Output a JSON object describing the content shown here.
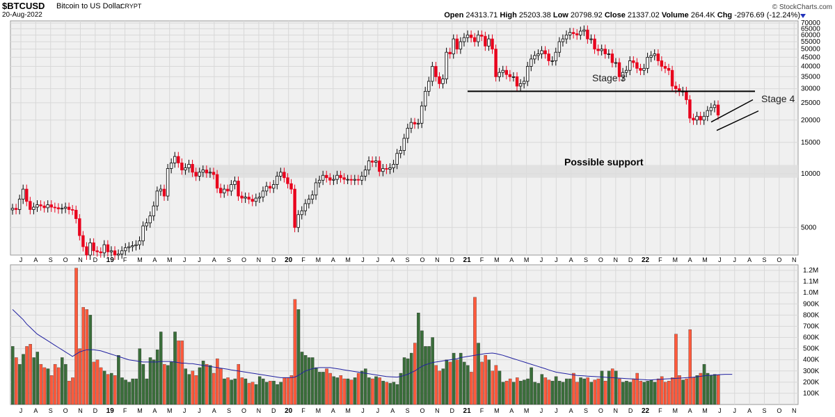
{
  "header": {
    "symbol": "$BTCUSD",
    "name": "Bitcoin to US Dollar",
    "exchange": "CRYPT",
    "date": "20-Aug-2022",
    "watermark": "© StockCharts.com",
    "open_label": "Open",
    "open": "24313.71",
    "high_label": "High",
    "high": "25203.38",
    "low_label": "Low",
    "low": "20798.92",
    "close_label": "Close",
    "close": "21337.02",
    "volume_label": "Volume",
    "volume": "264.4K",
    "chg_label": "Chg",
    "chg": "-2976.69 (-12.24%)"
  },
  "colors": {
    "up": "#ffffff",
    "down": "#e8001c",
    "vol_up": "#3a6e3a",
    "vol_down": "#ff5a3c",
    "ma": "#2020a0",
    "support_band": "#dddddd"
  },
  "chart_data": [
    {
      "type": "candlestick",
      "panel": "price",
      "y_scale": "log",
      "ylim": [
        3500,
        72000
      ],
      "y_ticks": [
        70000,
        65000,
        60000,
        55000,
        50000,
        45000,
        40000,
        35000,
        30000,
        25000,
        20000,
        15000,
        10000,
        5000
      ],
      "month_labels": [
        "J",
        "A",
        "S",
        "O",
        "N",
        "D",
        "19",
        "F",
        "M",
        "A",
        "M",
        "J",
        "J",
        "A",
        "S",
        "O",
        "N",
        "D",
        "20",
        "F",
        "M",
        "A",
        "M",
        "J",
        "J",
        "A",
        "S",
        "O",
        "N",
        "D",
        "21",
        "F",
        "M",
        "A",
        "M",
        "J",
        "J",
        "A",
        "S",
        "O",
        "N",
        "D",
        "22",
        "F",
        "M",
        "A",
        "M",
        "J",
        "J",
        "A",
        "S",
        "O",
        "N"
      ],
      "bar_interval": "week",
      "x_start": "2018-07-01",
      "closes": [
        6400,
        6300,
        7200,
        8200,
        7000,
        6300,
        6500,
        6700,
        6600,
        6450,
        6700,
        6500,
        6450,
        6350,
        6400,
        6500,
        6300,
        6250,
        5600,
        4500,
        3900,
        3500,
        4100,
        3700,
        3650,
        3600,
        4000,
        3650,
        3700,
        3500,
        3550,
        3700,
        3850,
        3900,
        3950,
        4000,
        4200,
        5100,
        5300,
        5800,
        6600,
        8000,
        8200,
        7500,
        10700,
        11500,
        12500,
        11500,
        10500,
        10800,
        11300,
        10200,
        9700,
        10200,
        10500,
        10100,
        10200,
        9900,
        8300,
        7800,
        8200,
        8000,
        8700,
        9100,
        7500,
        7300,
        7400,
        7200,
        7000,
        7300,
        7400,
        8000,
        8500,
        8300,
        8700,
        9700,
        10200,
        9500,
        8800,
        8200,
        5000,
        5900,
        6200,
        6800,
        7200,
        7600,
        8900,
        9200,
        9800,
        9500,
        9200,
        9300,
        9800,
        9500,
        9300,
        9300,
        9200,
        9300,
        9200,
        9700,
        10500,
        11800,
        11600,
        11800,
        10300,
        10700,
        10600,
        10800,
        11300,
        13000,
        13500,
        15800,
        18000,
        19400,
        19000,
        19200,
        24000,
        29000,
        33000,
        40000,
        35000,
        32000,
        34000,
        48000,
        47000,
        57000,
        50000,
        55000,
        58000,
        60000,
        58000,
        55000,
        60000,
        59000,
        52000,
        57000,
        50000,
        35000,
        37000,
        38000,
        36000,
        35000,
        35000,
        31000,
        32000,
        33000,
        40000,
        44000,
        46000,
        47000,
        49000,
        47000,
        43000,
        43000,
        48000,
        55000,
        57000,
        60000,
        62000,
        61000,
        60000,
        63000,
        64000,
        57000,
        57000,
        50000,
        49000,
        50000,
        47000,
        47000,
        42000,
        42000,
        35000,
        37000,
        38000,
        43000,
        42000,
        39000,
        38000,
        39000,
        45000,
        46000,
        47000,
        43000,
        40000,
        39000,
        38000,
        31000,
        30000,
        29000,
        29000,
        26000,
        20500,
        20000,
        21000,
        20000,
        21000,
        22600,
        23500,
        24300,
        21337
      ],
      "series": [
        {
          "name": "",
          "values": []
        }
      ]
    },
    {
      "type": "bar",
      "panel": "volume",
      "ylim": [
        0,
        1250000
      ],
      "y_ticks": [
        [
          "1.2M",
          1200000
        ],
        [
          "1.1M",
          1100000
        ],
        [
          "1.0M",
          1000000
        ],
        [
          "900K",
          900000
        ],
        [
          "800K",
          800000
        ],
        [
          "700K",
          700000
        ],
        [
          "600K",
          600000
        ],
        [
          "500K",
          500000
        ],
        [
          "400K",
          400000
        ],
        [
          "300K",
          300000
        ],
        [
          "200K",
          200000
        ],
        [
          "100K",
          100000
        ]
      ],
      "volumes": [
        520000,
        420000,
        360000,
        450000,
        520000,
        540000,
        420000,
        470000,
        360000,
        330000,
        320000,
        260000,
        360000,
        330000,
        420000,
        360000,
        210000,
        240000,
        1220000,
        500000,
        870000,
        850000,
        800000,
        380000,
        400000,
        330000,
        300000,
        270000,
        280000,
        260000,
        440000,
        240000,
        220000,
        200000,
        230000,
        230000,
        500000,
        360000,
        230000,
        420000,
        400000,
        490000,
        650000,
        360000,
        350000,
        380000,
        650000,
        570000,
        570000,
        320000,
        270000,
        300000,
        260000,
        330000,
        390000,
        360000,
        350000,
        280000,
        410000,
        320000,
        230000,
        240000,
        220000,
        230000,
        360000,
        240000,
        230000,
        190000,
        200000,
        180000,
        250000,
        230000,
        200000,
        210000,
        210000,
        180000,
        200000,
        240000,
        240000,
        260000,
        940000,
        850000,
        470000,
        440000,
        420000,
        420000,
        330000,
        290000,
        290000,
        320000,
        280000,
        250000,
        240000,
        260000,
        230000,
        230000,
        220000,
        240000,
        280000,
        300000,
        320000,
        240000,
        230000,
        250000,
        240000,
        210000,
        200000,
        190000,
        200000,
        180000,
        280000,
        420000,
        410000,
        460000,
        550000,
        820000,
        660000,
        520000,
        520000,
        600000,
        350000,
        300000,
        320000,
        400000,
        380000,
        460000,
        400000,
        460000,
        380000,
        350000,
        290000,
        960000,
        550000,
        380000,
        440000,
        400000,
        300000,
        350000,
        300000,
        200000,
        210000,
        230000,
        200000,
        240000,
        210000,
        220000,
        230000,
        330000,
        200000,
        190000,
        270000,
        240000,
        220000,
        210000,
        250000,
        210000,
        200000,
        230000,
        230000,
        280000,
        200000,
        240000,
        230000,
        240000,
        200000,
        220000,
        230000,
        300000,
        210000,
        300000,
        320000,
        300000,
        230000,
        200000,
        210000,
        200000,
        230000,
        280000,
        210000,
        200000,
        210000,
        220000,
        200000,
        230000,
        250000,
        200000,
        210000,
        240000,
        630000,
        260000,
        220000,
        230000,
        670000,
        240000,
        260000,
        280000,
        360000,
        280000,
        260000,
        270000,
        264400
      ],
      "ma_label": "",
      "ma_values": [
        850000,
        820000,
        790000,
        760000,
        720000,
        690000,
        660000,
        630000,
        610000,
        590000,
        570000,
        550000,
        530000,
        510000,
        490000,
        470000,
        450000,
        430000,
        450000,
        470000,
        480000,
        490000,
        490000,
        490000,
        485000,
        480000,
        470000,
        460000,
        450000,
        440000,
        430000,
        420000,
        410000,
        400000,
        395000,
        390000,
        385000,
        380000,
        380000,
        380000,
        380000,
        380000,
        385000,
        385000,
        385000,
        385000,
        380000,
        375000,
        370000,
        370000,
        365000,
        365000,
        360000,
        355000,
        350000,
        345000,
        340000,
        335000,
        330000,
        325000,
        320000,
        315000,
        310000,
        305000,
        300000,
        295000,
        290000,
        285000,
        280000,
        275000,
        270000,
        265000,
        260000,
        255000,
        250000,
        245000,
        240000,
        240000,
        240000,
        240000,
        245000,
        260000,
        280000,
        300000,
        310000,
        320000,
        325000,
        330000,
        330000,
        330000,
        330000,
        325000,
        320000,
        315000,
        310000,
        305000,
        300000,
        295000,
        290000,
        285000,
        280000,
        275000,
        270000,
        265000,
        260000,
        255000,
        250000,
        248000,
        246000,
        245000,
        250000,
        260000,
        270000,
        285000,
        300000,
        320000,
        340000,
        355000,
        365000,
        375000,
        380000,
        385000,
        390000,
        395000,
        400000,
        405000,
        410000,
        420000,
        425000,
        430000,
        435000,
        440000,
        445000,
        450000,
        455000,
        458000,
        460000,
        455000,
        448000,
        440000,
        430000,
        420000,
        410000,
        400000,
        390000,
        380000,
        370000,
        360000,
        350000,
        340000,
        330000,
        320000,
        310000,
        300000,
        290000,
        285000,
        280000,
        275000,
        270000,
        265000,
        260000,
        258000,
        256000,
        254000,
        252000,
        250000,
        248000,
        246000,
        244000,
        242000,
        240000,
        238000,
        236000,
        234000,
        232000,
        230000,
        228000,
        226000,
        224000,
        222000,
        220000,
        220000,
        222000,
        224000,
        226000,
        228000,
        230000,
        232000,
        234000,
        236000,
        238000,
        240000,
        242000,
        244000,
        248000,
        252000,
        256000,
        260000,
        262000,
        264000,
        266000,
        268000,
        270000,
        270000,
        270000
      ]
    }
  ],
  "annotations": {
    "stage3": "Stage 3",
    "stage4": "Stage 4",
    "support": "Possible support"
  }
}
